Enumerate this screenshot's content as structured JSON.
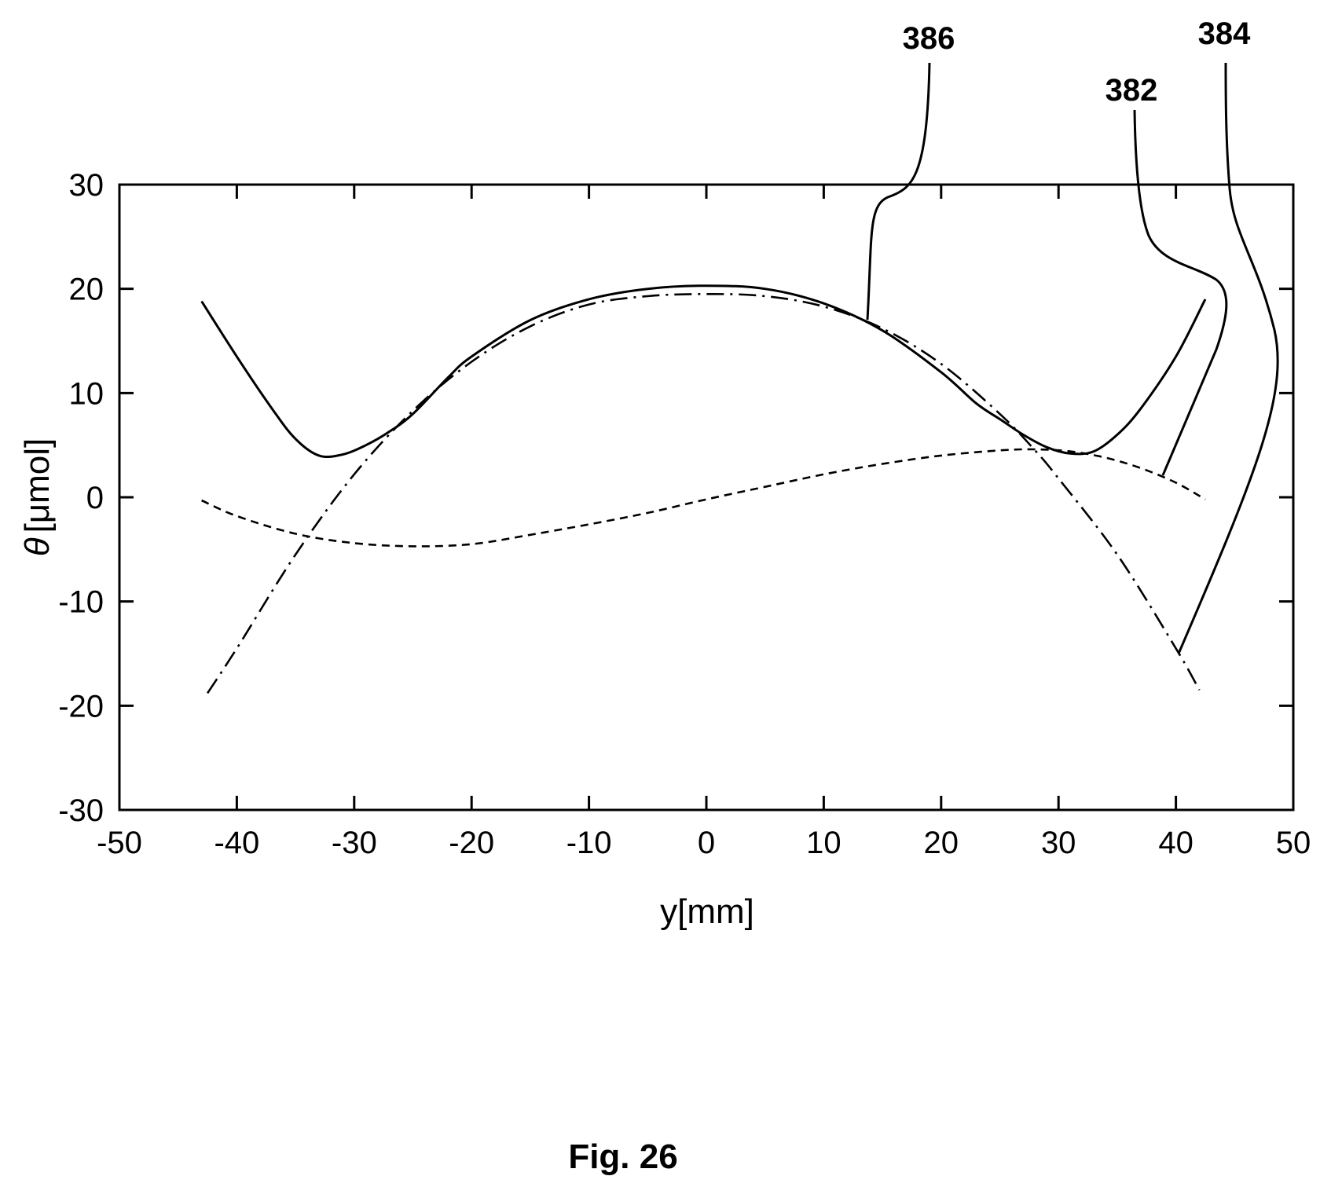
{
  "chart_data": {
    "type": "line",
    "xlabel": "y[mm]",
    "ylabel_symbol": "θ",
    "ylabel_unit": "[μmol]",
    "xlim": [
      -50,
      50
    ],
    "ylim": [
      -30,
      30
    ],
    "x_ticks": [
      -50,
      -40,
      -30,
      -20,
      -10,
      0,
      10,
      20,
      30,
      40,
      50
    ],
    "y_ticks": [
      -30,
      -20,
      -10,
      0,
      10,
      20,
      30
    ],
    "x_tick_labels": [
      "-50",
      "-40",
      "-30",
      "-20",
      "-10",
      "0",
      "10",
      "20",
      "30",
      "40",
      "50"
    ],
    "y_tick_labels": [
      "-30",
      "-20",
      "-10",
      "0",
      "10",
      "20",
      "30"
    ],
    "grid": false,
    "series": [
      {
        "ref": "386",
        "style": "solid",
        "points": [
          [
            -43,
            18.8
          ],
          [
            -40,
            13.5
          ],
          [
            -37,
            8.5
          ],
          [
            -35,
            5.6
          ],
          [
            -33,
            4.0
          ],
          [
            -31,
            4.1
          ],
          [
            -29,
            5.0
          ],
          [
            -27,
            6.3
          ],
          [
            -25,
            8.0
          ],
          [
            -22,
            11.5
          ],
          [
            -20,
            13.5
          ],
          [
            -15,
            17.0
          ],
          [
            -10,
            19.0
          ],
          [
            -5,
            20.0
          ],
          [
            0,
            20.3
          ],
          [
            5,
            20.0
          ],
          [
            10,
            18.6
          ],
          [
            15,
            16.0
          ],
          [
            20,
            12.0
          ],
          [
            23,
            9.0
          ],
          [
            25,
            7.5
          ],
          [
            27,
            6.0
          ],
          [
            29,
            4.8
          ],
          [
            31,
            4.2
          ],
          [
            33,
            4.4
          ],
          [
            35,
            6.0
          ],
          [
            37,
            8.5
          ],
          [
            40,
            13.5
          ],
          [
            42.5,
            19.0
          ]
        ]
      },
      {
        "ref": "382",
        "style": "dashed",
        "points": [
          [
            -43,
            -0.3
          ],
          [
            -40,
            -1.8
          ],
          [
            -35,
            -3.5
          ],
          [
            -30,
            -4.4
          ],
          [
            -25,
            -4.7
          ],
          [
            -20,
            -4.5
          ],
          [
            -15,
            -3.6
          ],
          [
            -10,
            -2.6
          ],
          [
            -5,
            -1.5
          ],
          [
            0,
            -0.2
          ],
          [
            5,
            1.0
          ],
          [
            10,
            2.2
          ],
          [
            15,
            3.2
          ],
          [
            20,
            4.0
          ],
          [
            25,
            4.5
          ],
          [
            28,
            4.6
          ],
          [
            31,
            4.4
          ],
          [
            34,
            3.8
          ],
          [
            37,
            2.8
          ],
          [
            40,
            1.4
          ],
          [
            42.5,
            -0.2
          ]
        ]
      },
      {
        "ref": "384",
        "style": "dashdot",
        "points": [
          [
            -42.5,
            -18.8
          ],
          [
            -40,
            -14.5
          ],
          [
            -35,
            -5.5
          ],
          [
            -30,
            2.2
          ],
          [
            -25,
            8.3
          ],
          [
            -20,
            13.0
          ],
          [
            -15,
            16.4
          ],
          [
            -10,
            18.5
          ],
          [
            -5,
            19.3
          ],
          [
            0,
            19.5
          ],
          [
            5,
            19.3
          ],
          [
            10,
            18.3
          ],
          [
            15,
            16.2
          ],
          [
            20,
            12.8
          ],
          [
            25,
            8.0
          ],
          [
            28,
            4.5
          ],
          [
            30,
            1.8
          ],
          [
            35,
            -5.5
          ],
          [
            40,
            -14.5
          ],
          [
            42,
            -18.5
          ]
        ]
      }
    ],
    "reference_labels": [
      {
        "text": "386",
        "series": "386"
      },
      {
        "text": "382",
        "series": "382"
      },
      {
        "text": "384",
        "series": "384"
      }
    ]
  },
  "caption": "Fig. 26"
}
